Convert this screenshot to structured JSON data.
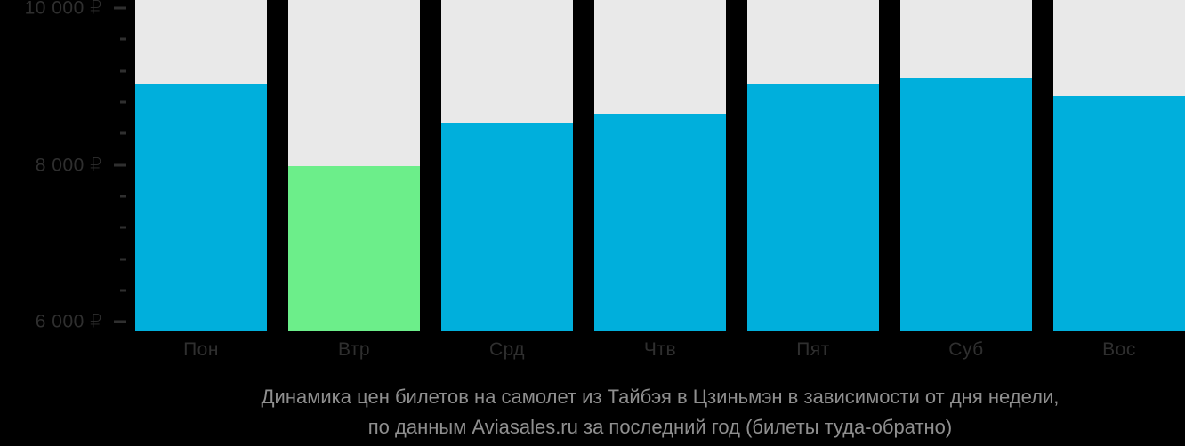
{
  "chart_data": {
    "type": "bar",
    "title": "Динамика цен билетов на самолет из Тайбэя в Цзиньмэн в зависимости от дня недели,",
    "subtitle": "по данным Aviasales.ru за последний год (билеты туда-обратно)",
    "categories": [
      "Пон",
      "Втр",
      "Срд",
      "Чтв",
      "Пят",
      "Суб",
      "Вос"
    ],
    "values": [
      9030,
      7980,
      8540,
      8650,
      9040,
      9100,
      8880
    ],
    "bars": [
      {
        "label": "Пон",
        "value": 9030,
        "color": "#00AFDC",
        "highlight": false
      },
      {
        "label": "Втр",
        "value": 7980,
        "color": "#6CEE8A",
        "highlight": true
      },
      {
        "label": "Срд",
        "value": 8540,
        "color": "#00AFDC",
        "highlight": false
      },
      {
        "label": "Чтв",
        "value": 8650,
        "color": "#00AFDC",
        "highlight": false
      },
      {
        "label": "Пят",
        "value": 9040,
        "color": "#00AFDC",
        "highlight": false
      },
      {
        "label": "Суб",
        "value": 9100,
        "color": "#00AFDC",
        "highlight": false
      },
      {
        "label": "Вос",
        "value": 8880,
        "color": "#00AFDC",
        "highlight": false
      }
    ],
    "ylim": [
      5880,
      10100
    ],
    "y_axis": {
      "major_ticks": [
        {
          "value": 10000,
          "label": "10 000 ₽"
        },
        {
          "value": 8000,
          "label": "8 000 ₽"
        },
        {
          "value": 6000,
          "label": "6 000 ₽"
        }
      ],
      "minor_tick_step": 400
    },
    "layout": {
      "grid": false,
      "legend": "none",
      "background_tracks": true
    }
  },
  "colors": {
    "background": "#000000",
    "column_track": "#E9E9E9",
    "bar_primary": "#00AFDC",
    "bar_highlight": "#6CEE8A",
    "axis_text": "#2F2F2F",
    "caption_text": "#8F8F8F"
  }
}
